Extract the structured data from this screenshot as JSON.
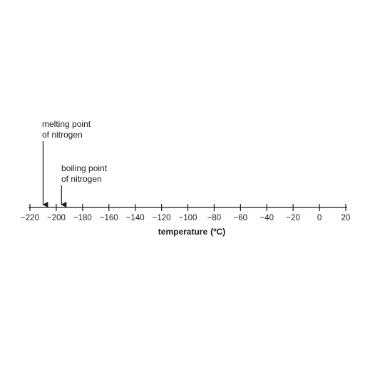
{
  "axis": {
    "min": -220,
    "max": 20,
    "step": 20,
    "tick_labels": [
      "−220",
      "−200",
      "−180",
      "−160",
      "−140",
      "−120",
      "−100",
      "−80",
      "−60",
      "−40",
      "−20",
      "0",
      "20"
    ],
    "title_main": "temperature",
    "title_unit": "(ºC)"
  },
  "annotations": {
    "melting": {
      "line1": "melting point",
      "line2": "of nitrogen",
      "value": -210
    },
    "boiling": {
      "line1": "boiling point",
      "line2": "of nitrogen",
      "value": -196
    }
  }
}
